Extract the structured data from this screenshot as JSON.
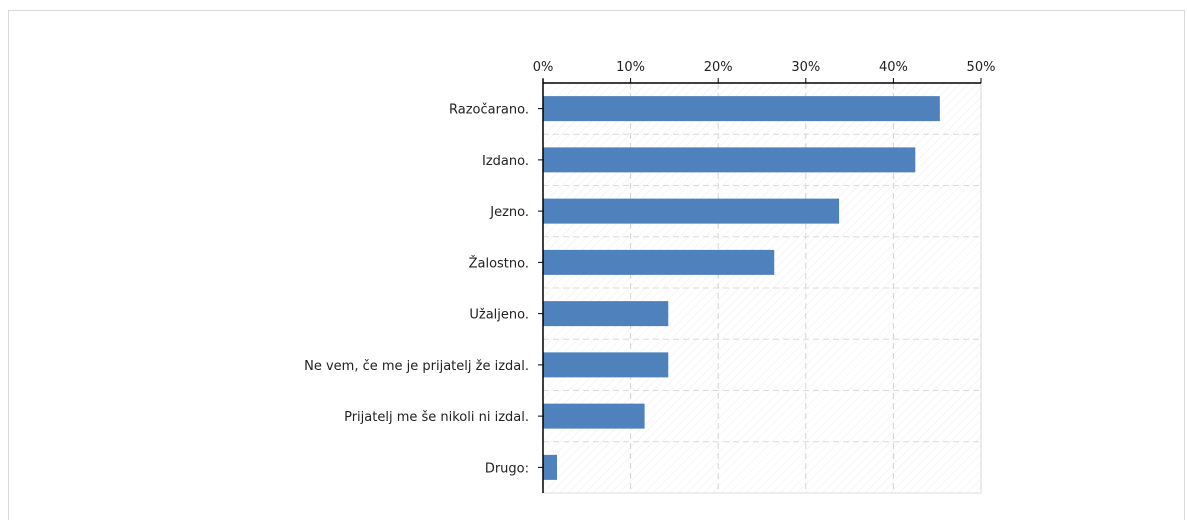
{
  "chart_data": {
    "type": "bar",
    "orientation": "horizontal",
    "categories": [
      "Razočarano.",
      "Izdano.",
      "Jezno.",
      "Žalostno.",
      "Užaljeno.",
      "Ne vem, če me je prijatelj že izdal.",
      "Prijatelj me še nikoli ni izdal.",
      "Drugo:"
    ],
    "values": [
      45.3,
      42.5,
      33.8,
      26.4,
      14.3,
      14.3,
      11.6,
      1.6
    ],
    "xlim": [
      0,
      50
    ],
    "xticks": [
      0,
      10,
      20,
      30,
      40,
      50
    ],
    "xtick_labels": [
      "0%",
      "10%",
      "20%",
      "30%",
      "40%",
      "50%"
    ],
    "x_axis_position": "top",
    "grid": true,
    "bar_color": "#4f81bd",
    "title": "",
    "xlabel": "",
    "ylabel": ""
  }
}
